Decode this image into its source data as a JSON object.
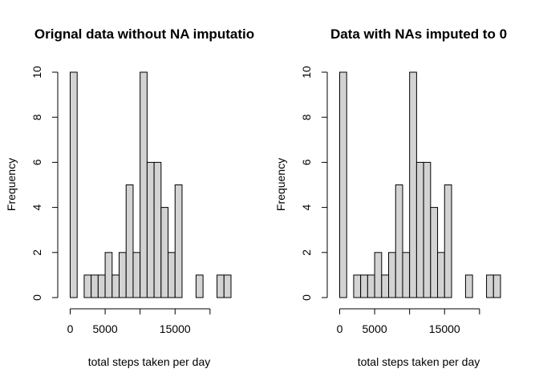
{
  "chart_data": [
    {
      "type": "bar",
      "title": "Orignal data without NA imputatio",
      "xlabel": "total steps taken per day",
      "ylabel": "Frequency",
      "bin_width": 1000,
      "x_start": 0,
      "values": [
        10,
        0,
        1,
        1,
        1,
        2,
        1,
        2,
        5,
        2,
        10,
        6,
        6,
        4,
        2,
        5,
        0,
        0,
        1,
        0,
        0,
        1,
        1
      ],
      "xlim": [
        0,
        23000
      ],
      "ylim": [
        0,
        10
      ],
      "x_ticks": [
        0,
        5000,
        15000
      ],
      "x_tick_labels": [
        "0",
        "5000",
        "15000"
      ],
      "x_minor_ticks": [
        10000,
        20000
      ],
      "y_ticks": [
        0,
        2,
        4,
        6,
        8,
        10
      ],
      "y_tick_labels": [
        "0",
        "2",
        "4",
        "6",
        "8",
        "10"
      ],
      "grid": false,
      "colors": {
        "bar_fill": "#d3d3d3",
        "bar_stroke": "#000000"
      }
    },
    {
      "type": "bar",
      "title": "Data with NAs imputed to 0",
      "xlabel": "total steps taken per day",
      "ylabel": "Frequency",
      "bin_width": 1000,
      "x_start": 0,
      "values": [
        10,
        0,
        1,
        1,
        1,
        2,
        1,
        2,
        5,
        2,
        10,
        6,
        6,
        4,
        2,
        5,
        0,
        0,
        1,
        0,
        0,
        1,
        1
      ],
      "xlim": [
        0,
        23000
      ],
      "ylim": [
        0,
        10
      ],
      "x_ticks": [
        0,
        5000,
        15000
      ],
      "x_tick_labels": [
        "0",
        "5000",
        "15000"
      ],
      "x_minor_ticks": [
        10000,
        20000
      ],
      "y_ticks": [
        0,
        2,
        4,
        6,
        8,
        10
      ],
      "y_tick_labels": [
        "0",
        "2",
        "4",
        "6",
        "8",
        "10"
      ],
      "grid": false,
      "colors": {
        "bar_fill": "#d3d3d3",
        "bar_stroke": "#000000"
      }
    }
  ]
}
